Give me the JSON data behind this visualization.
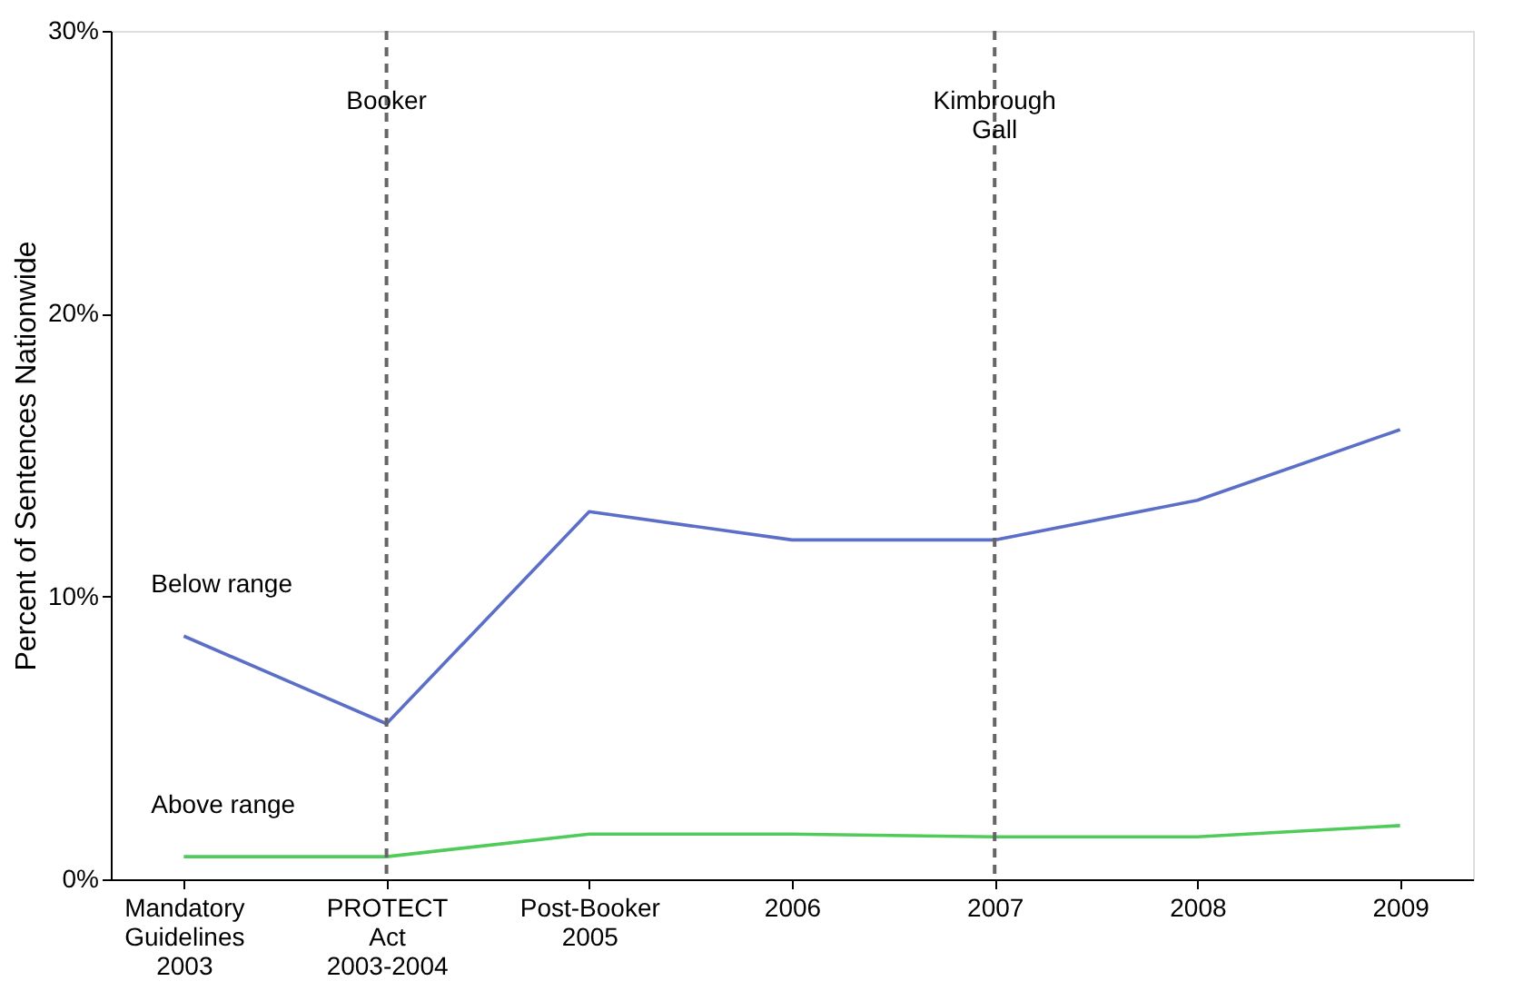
{
  "chart_data": {
    "type": "line",
    "ylabel": "Percent of Sentences Nationwide",
    "categories": [
      "Mandatory\nGuidelines\n2003",
      "PROTECT\nAct\n2003-2004",
      "Post-Booker\n2005",
      "2006",
      "2007",
      "2008",
      "2009"
    ],
    "series": [
      {
        "name": "Below range",
        "color": "#5b6ec8",
        "values": [
          8.6,
          5.5,
          13.0,
          12.0,
          12.0,
          13.4,
          15.9
        ]
      },
      {
        "name": "Above range",
        "color": "#4fcb5a",
        "values": [
          0.8,
          0.8,
          1.6,
          1.6,
          1.5,
          1.5,
          1.9
        ]
      }
    ],
    "ylim": [
      0,
      30
    ],
    "yticks": [
      {
        "value": 0,
        "label": "0%"
      },
      {
        "value": 10,
        "label": "10%"
      },
      {
        "value": 20,
        "label": "20%"
      },
      {
        "value": 30,
        "label": "30%"
      }
    ],
    "ref_lines": [
      {
        "axis": "x",
        "value": "PROTECT\nAct\n2003-2004",
        "label": "Booker",
        "color": "#666666",
        "line_style": "dashed"
      },
      {
        "axis": "x",
        "value": "2007",
        "label": "Kimbrough\nGall",
        "color": "#666666",
        "line_style": "dashed"
      }
    ],
    "grid": false,
    "legend": false,
    "marker": "none",
    "line_style": "solid"
  }
}
